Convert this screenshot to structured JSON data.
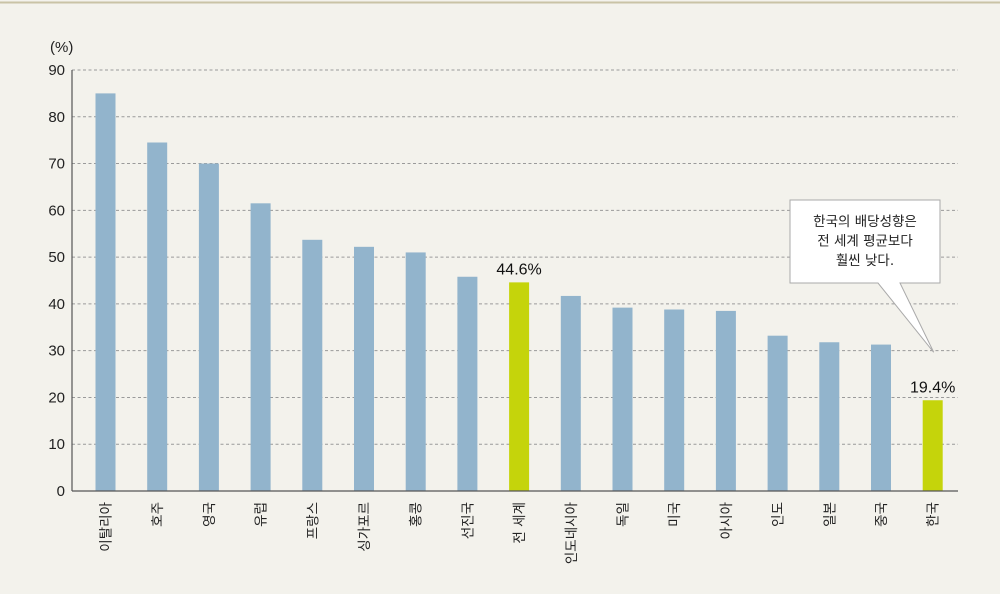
{
  "chart_data": {
    "type": "bar",
    "unit_label": "(%)",
    "categories": [
      "이탈리아",
      "호주",
      "영국",
      "유럽",
      "프랑스",
      "싱가포르",
      "홍콩",
      "선진국",
      "전 세계",
      "인도네시아",
      "독일",
      "미국",
      "아시아",
      "인도",
      "일본",
      "중국",
      "한국"
    ],
    "values": [
      85,
      74.5,
      70,
      61.5,
      53.7,
      52.2,
      51,
      45.8,
      44.6,
      41.7,
      39.2,
      38.8,
      38.5,
      33.2,
      31.8,
      31.3,
      19.4
    ],
    "highlight": [
      "전 세계",
      "한국"
    ],
    "data_labels": {
      "전 세계": "44.6%",
      "한국": "19.4%"
    },
    "ylim": [
      0,
      90
    ],
    "yticks": [
      0,
      10,
      20,
      30,
      40,
      50,
      60,
      70,
      80,
      90
    ],
    "grid": true,
    "annotation": {
      "lines": [
        "한국의 배당성향은",
        "전 세계 평균보다",
        "훨씬 낮다."
      ],
      "target": "한국"
    },
    "colors": {
      "bar": "#92b4cc",
      "highlight": "#c5d40b",
      "grid": "#9a9a9a",
      "axis": "#555555"
    }
  }
}
